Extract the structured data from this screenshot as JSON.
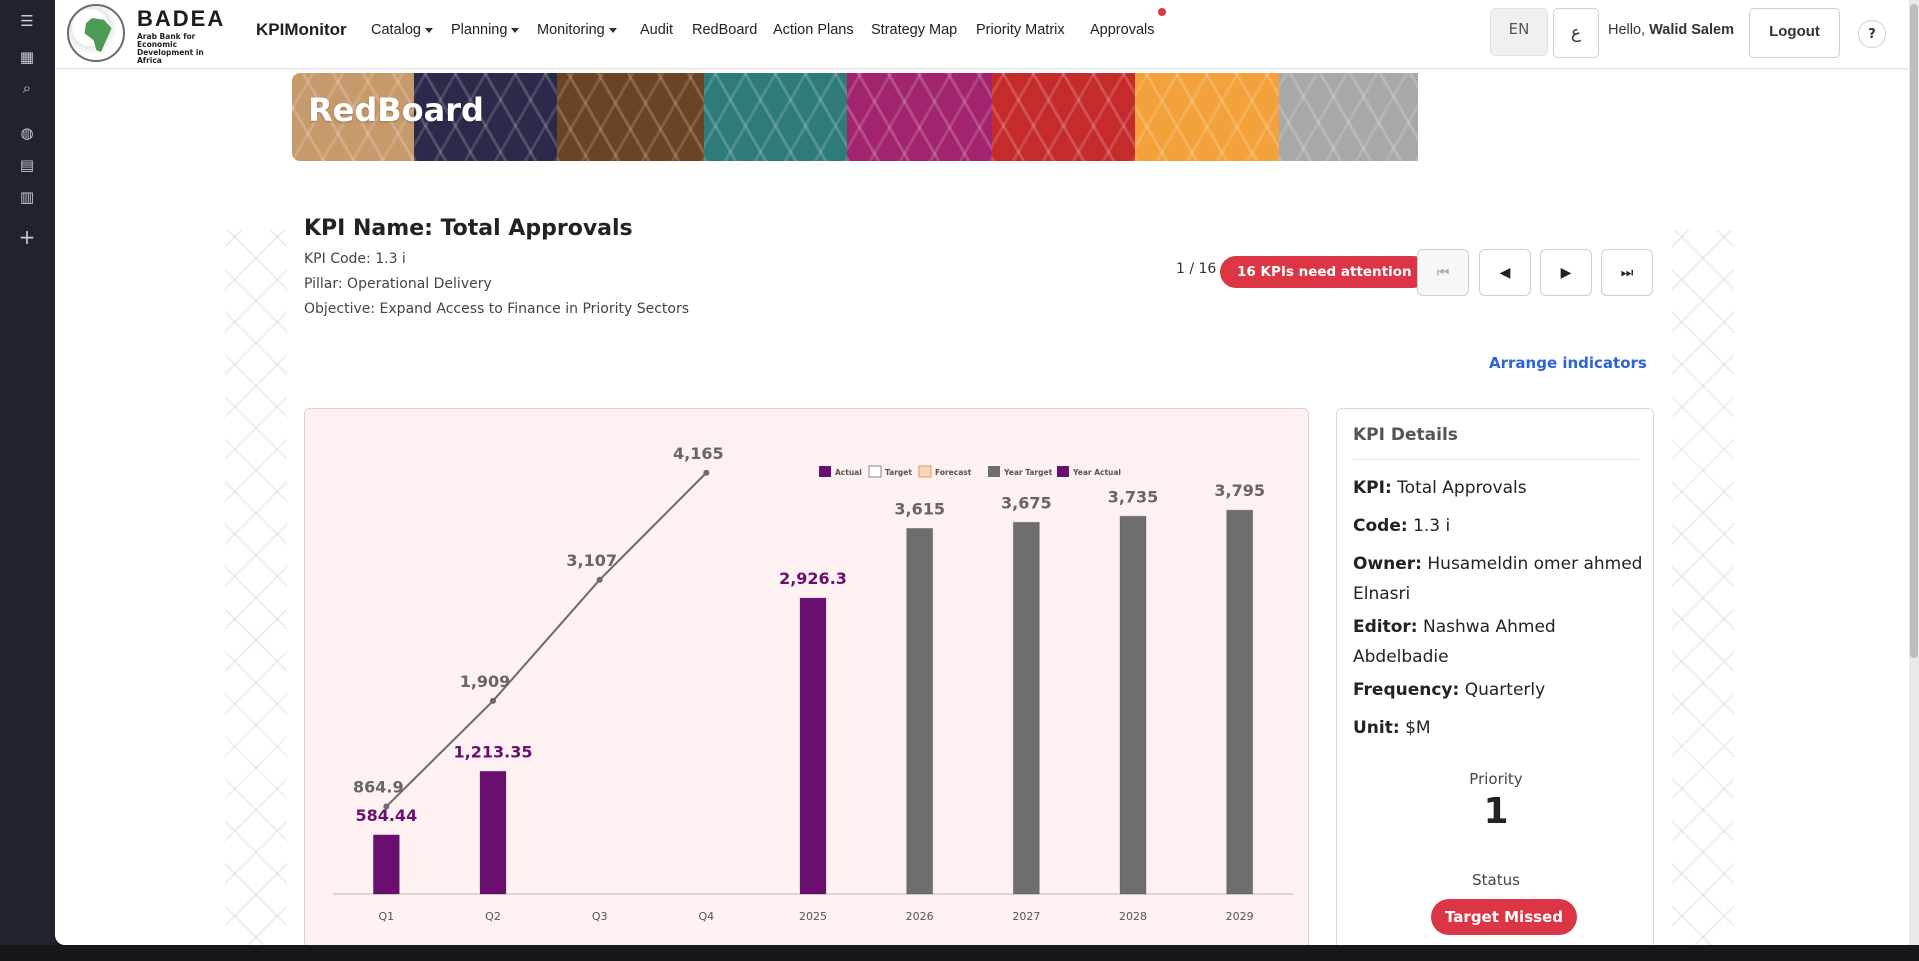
{
  "navbar": {
    "logo": {
      "word": "BADEA",
      "subtitle": "Arab Bank for Economic Development in Africa"
    },
    "brand": "KPIMonitor",
    "items": [
      {
        "label": "Catalog",
        "dropdown": true
      },
      {
        "label": "Planning",
        "dropdown": true
      },
      {
        "label": "Monitoring",
        "dropdown": true
      },
      {
        "label": "Audit",
        "dropdown": false
      },
      {
        "label": "RedBoard",
        "dropdown": false
      },
      {
        "label": "Action Plans",
        "dropdown": false
      },
      {
        "label": "Strategy Map",
        "dropdown": false
      },
      {
        "label": "Priority Matrix",
        "dropdown": false
      },
      {
        "label": "Approvals",
        "dropdown": false
      }
    ],
    "lang": "EN",
    "lang_alt": "ع",
    "hello_prefix": "Hello,",
    "user_name": "Walid Salem",
    "logout": "Logout",
    "help": "?"
  },
  "banner": {
    "title": "RedBoard",
    "colors": [
      "#c79a6b",
      "#2b2a4a",
      "#6b4426",
      "#2f7b7b",
      "#a3246e",
      "#c62b2b",
      "#f3a13a",
      "#a8a8a8"
    ]
  },
  "kpi": {
    "title": "KPI Name: Total Approvals",
    "code_line": "KPI Code: 1.3 i",
    "pillar_line": "Pillar: Operational Delivery",
    "objective_line": "Objective: Expand Access to Finance in Priority Sectors"
  },
  "pager": {
    "position": "1 / 16",
    "attention": "16 KPIs need attention",
    "first_icon": "⏮",
    "prev_icon": "◀",
    "next_icon": "▶",
    "last_icon": "⏭"
  },
  "arrange_link": "Arrange indicators",
  "details": {
    "title": "KPI Details",
    "rows": [
      {
        "label": "KPI:",
        "value": "Total Approvals"
      },
      {
        "label": "Code:",
        "value": "1.3 i"
      },
      {
        "label": "Owner:",
        "value": "Husameldin omer ahmed Elnasri"
      },
      {
        "label": "Editor:",
        "value": "Nashwa Ahmed Abdelbadie"
      },
      {
        "label": "Frequency:",
        "value": "Quarterly"
      },
      {
        "label": "Unit:",
        "value": "$M"
      }
    ],
    "priority_label": "Priority",
    "priority_value": "1",
    "status_label": "Status",
    "status_value": "Target Missed"
  },
  "colors": {
    "actual": "#6a0f6f",
    "target_line": "#6a6a6a",
    "year_target": "#6e6e6e",
    "danger": "#dc3545",
    "link": "#2c63d6"
  },
  "chart_data": {
    "type": "bar",
    "categories": [
      "Q1",
      "Q2",
      "Q3",
      "Q4",
      "2025",
      "2026",
      "2027",
      "2028",
      "2029"
    ],
    "legend": [
      "Actual",
      "Target",
      "Forecast",
      "Year Target",
      "Year Actual"
    ],
    "legend_position": "top-center",
    "series": [
      {
        "name": "Actual",
        "kind": "bar",
        "color": "#6a0f6f",
        "values": [
          584.44,
          1213.35,
          null,
          null,
          null,
          null,
          null,
          null,
          null
        ],
        "labels": [
          "584.44",
          "1,213.35",
          "",
          "",
          "",
          "",
          "",
          "",
          ""
        ]
      },
      {
        "name": "Target",
        "kind": "line",
        "color": "#6a6a6a",
        "values": [
          864.9,
          1909,
          3107,
          4165,
          null,
          null,
          null,
          null,
          null
        ],
        "labels": [
          "864.9",
          "1,909",
          "3,107",
          "4,165",
          "",
          "",
          "",
          "",
          ""
        ]
      },
      {
        "name": "Year Actual",
        "kind": "bar",
        "color": "#6a0f6f",
        "values": [
          null,
          null,
          null,
          null,
          2926.3,
          null,
          null,
          null,
          null
        ],
        "labels": [
          "",
          "",
          "",
          "",
          "2,926.3",
          "",
          "",
          "",
          ""
        ]
      },
      {
        "name": "Year Target",
        "kind": "bar",
        "color": "#6e6e6e",
        "values": [
          null,
          null,
          null,
          null,
          null,
          3615,
          3675,
          3735,
          3795
        ],
        "labels": [
          "",
          "",
          "",
          "",
          "",
          "3,615",
          "3,675",
          "3,735",
          "3,795"
        ]
      }
    ],
    "ylim": [
      0,
      4400
    ],
    "grid": false
  }
}
